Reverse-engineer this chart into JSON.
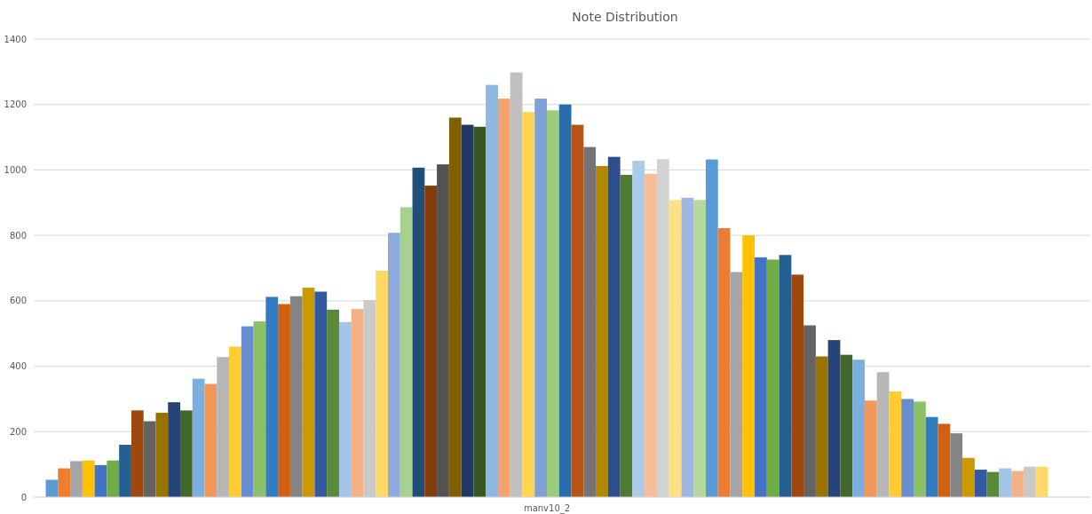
{
  "chart_data": {
    "type": "bar",
    "title": "Note Distribution",
    "categories": [
      "manv10_2"
    ],
    "ylim": [
      0,
      1400
    ],
    "yticks": [
      0,
      200,
      400,
      600,
      800,
      1000,
      1200,
      1400
    ],
    "grid": "y",
    "series": [
      {
        "color": "#5b9bd5",
        "values": [
          53
        ]
      },
      {
        "color": "#ed7d31",
        "values": [
          88
        ]
      },
      {
        "color": "#a5a5a5",
        "values": [
          110
        ]
      },
      {
        "color": "#ffc000",
        "values": [
          112
        ]
      },
      {
        "color": "#4472c4",
        "values": [
          98
        ]
      },
      {
        "color": "#70ad47",
        "values": [
          112
        ]
      },
      {
        "color": "#255e91",
        "values": [
          160
        ]
      },
      {
        "color": "#9e480e",
        "values": [
          265
        ]
      },
      {
        "color": "#636363",
        "values": [
          232
        ]
      },
      {
        "color": "#997300",
        "values": [
          258
        ]
      },
      {
        "color": "#264478",
        "values": [
          290
        ]
      },
      {
        "color": "#43682b",
        "values": [
          265
        ]
      },
      {
        "color": "#7cafdd",
        "values": [
          362
        ]
      },
      {
        "color": "#f1975a",
        "values": [
          346
        ]
      },
      {
        "color": "#b7b7b7",
        "values": [
          428
        ]
      },
      {
        "color": "#ffcd33",
        "values": [
          460
        ]
      },
      {
        "color": "#698ed0",
        "values": [
          522
        ]
      },
      {
        "color": "#8cc168",
        "values": [
          537
        ]
      },
      {
        "color": "#327dc2",
        "values": [
          612
        ]
      },
      {
        "color": "#d26012",
        "values": [
          590
        ]
      },
      {
        "color": "#848484",
        "values": [
          614
        ]
      },
      {
        "color": "#cc9a00",
        "values": [
          640
        ]
      },
      {
        "color": "#335aa1",
        "values": [
          628
        ]
      },
      {
        "color": "#5a8a39",
        "values": [
          573
        ]
      },
      {
        "color": "#a2c4e6",
        "values": [
          535
        ]
      },
      {
        "color": "#f4b183",
        "values": [
          575
        ]
      },
      {
        "color": "#c9c9c9",
        "values": [
          602
        ]
      },
      {
        "color": "#ffd966",
        "values": [
          692
        ]
      },
      {
        "color": "#8faadc",
        "values": [
          808
        ]
      },
      {
        "color": "#a9d18e",
        "values": [
          886
        ]
      },
      {
        "color": "#1f4e79",
        "values": [
          1007
        ]
      },
      {
        "color": "#843c0c",
        "values": [
          952
        ]
      },
      {
        "color": "#525252",
        "values": [
          1017
        ]
      },
      {
        "color": "#7f6000",
        "values": [
          1160
        ]
      },
      {
        "color": "#203864",
        "values": [
          1138
        ]
      },
      {
        "color": "#385723",
        "values": [
          1132
        ]
      },
      {
        "color": "#8db6e0",
        "values": [
          1260
        ]
      },
      {
        "color": "#f2a46f",
        "values": [
          1218
        ]
      },
      {
        "color": "#c0c0c0",
        "values": [
          1298
        ]
      },
      {
        "color": "#ffd54f",
        "values": [
          1177
        ]
      },
      {
        "color": "#7f9fd5",
        "values": [
          1218
        ]
      },
      {
        "color": "#9dcc7c",
        "values": [
          1182
        ]
      },
      {
        "color": "#2a6dab",
        "values": [
          1200
        ]
      },
      {
        "color": "#b95514",
        "values": [
          1138
        ]
      },
      {
        "color": "#747474",
        "values": [
          1070
        ]
      },
      {
        "color": "#b38800",
        "values": [
          1012
        ]
      },
      {
        "color": "#2d4f8e",
        "values": [
          1040
        ]
      },
      {
        "color": "#4f7a32",
        "values": [
          985
        ]
      },
      {
        "color": "#accbe9",
        "values": [
          1028
        ]
      },
      {
        "color": "#f6bd97",
        "values": [
          988
        ]
      },
      {
        "color": "#d2d2d2",
        "values": [
          1033
        ]
      },
      {
        "color": "#ffe083",
        "values": [
          908
        ]
      },
      {
        "color": "#a1b7e2",
        "values": [
          915
        ]
      },
      {
        "color": "#b5d99d",
        "values": [
          908
        ]
      },
      {
        "color": "#5b9bd5",
        "values": [
          1032
        ]
      },
      {
        "color": "#ed7d31",
        "values": [
          822
        ]
      },
      {
        "color": "#a5a5a5",
        "values": [
          688
        ]
      },
      {
        "color": "#ffc000",
        "values": [
          800
        ]
      },
      {
        "color": "#4472c4",
        "values": [
          733
        ]
      },
      {
        "color": "#70ad47",
        "values": [
          726
        ]
      },
      {
        "color": "#255e91",
        "values": [
          740
        ]
      },
      {
        "color": "#9e480e",
        "values": [
          680
        ]
      },
      {
        "color": "#636363",
        "values": [
          525
        ]
      },
      {
        "color": "#997300",
        "values": [
          430
        ]
      },
      {
        "color": "#264478",
        "values": [
          480
        ]
      },
      {
        "color": "#43682b",
        "values": [
          435
        ]
      },
      {
        "color": "#7cafdd",
        "values": [
          420
        ]
      },
      {
        "color": "#f1975a",
        "values": [
          295
        ]
      },
      {
        "color": "#b7b7b7",
        "values": [
          382
        ]
      },
      {
        "color": "#ffcd33",
        "values": [
          323
        ]
      },
      {
        "color": "#698ed0",
        "values": [
          300
        ]
      },
      {
        "color": "#8cc168",
        "values": [
          292
        ]
      },
      {
        "color": "#327dc2",
        "values": [
          245
        ]
      },
      {
        "color": "#d26012",
        "values": [
          224
        ]
      },
      {
        "color": "#848484",
        "values": [
          195
        ]
      },
      {
        "color": "#cc9a00",
        "values": [
          120
        ]
      },
      {
        "color": "#335aa1",
        "values": [
          84
        ]
      },
      {
        "color": "#5a8a39",
        "values": [
          77
        ]
      },
      {
        "color": "#a2c4e6",
        "values": [
          88
        ]
      },
      {
        "color": "#f4b183",
        "values": [
          80
        ]
      },
      {
        "color": "#c9c9c9",
        "values": [
          93
        ]
      },
      {
        "color": "#ffd966",
        "values": [
          93
        ]
      }
    ]
  }
}
